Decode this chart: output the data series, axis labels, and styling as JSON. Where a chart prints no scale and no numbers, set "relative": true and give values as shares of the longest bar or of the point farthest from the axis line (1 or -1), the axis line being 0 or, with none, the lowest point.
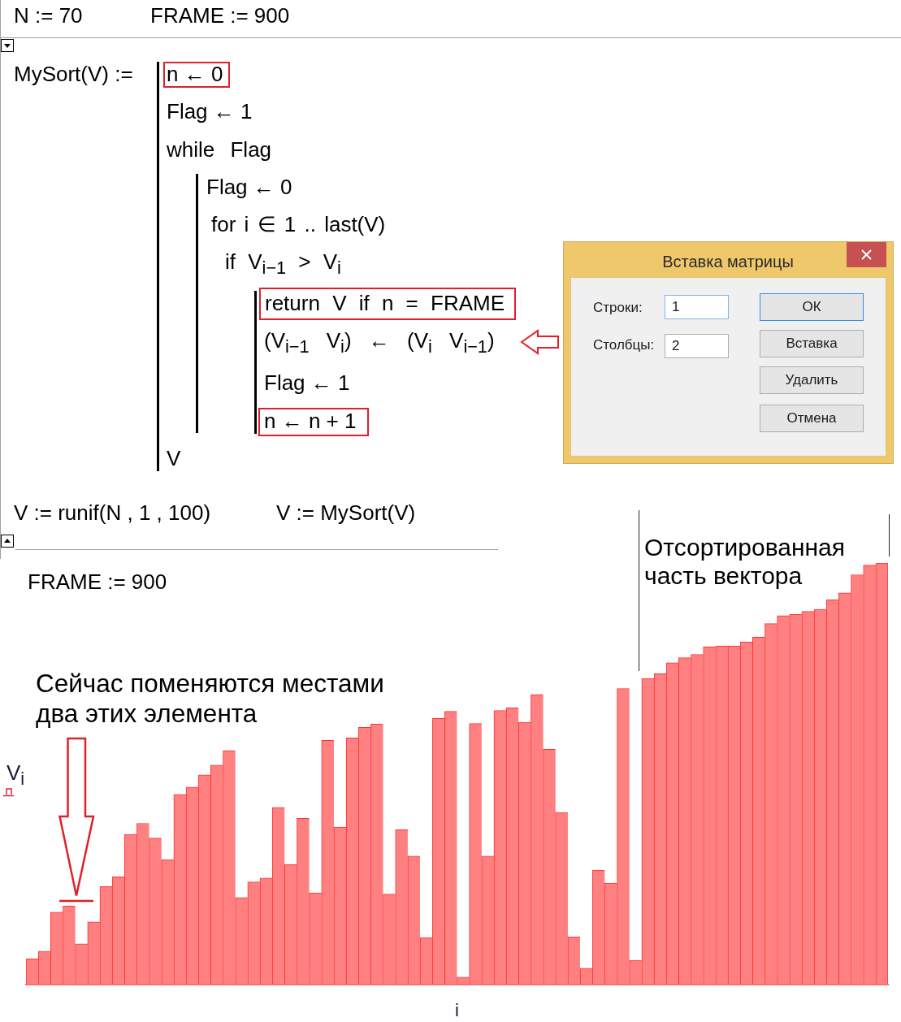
{
  "chart_data": {
    "type": "bar",
    "relative": true,
    "xlabel": "i",
    "ylabel": "V$_{i}$",
    "color": "#ff8080",
    "categories": [
      null,
      null,
      null,
      null,
      null,
      null,
      null,
      null,
      null,
      null,
      null,
      null,
      null,
      null,
      null,
      null,
      null,
      null,
      null,
      null,
      null,
      null,
      null,
      null,
      null,
      null,
      null,
      null,
      null,
      null,
      null,
      null,
      null,
      null,
      null,
      null,
      null,
      null,
      null,
      null,
      null,
      null,
      null,
      null,
      null,
      null,
      null,
      null,
      null,
      null,
      null,
      null,
      null,
      null,
      null,
      null,
      null,
      null,
      null,
      null,
      null,
      null,
      null,
      null,
      null,
      null,
      null,
      null,
      null,
      null
    ],
    "values": [
      0.061,
      0.078,
      0.171,
      0.186,
      0.096,
      0.148,
      0.232,
      0.255,
      0.356,
      0.382,
      0.347,
      0.296,
      0.451,
      0.468,
      0.497,
      0.52,
      0.555,
      0.206,
      0.243,
      0.252,
      0.42,
      0.284,
      0.394,
      0.217,
      0.579,
      0.373,
      0.585,
      0.61,
      0.618,
      0.214,
      0.367,
      0.304,
      0.111,
      0.631,
      0.648,
      0.017,
      0.619,
      0.304,
      0.65,
      0.656,
      0.622,
      0.688,
      0.558,
      0.408,
      0.113,
      0.038,
      0.271,
      0.24,
      0.702,
      0.057,
      0.726,
      0.737,
      0.763,
      0.775,
      0.783,
      0.801,
      0.803,
      0.803,
      0.813,
      0.824,
      0.856,
      0.875,
      0.878,
      0.885,
      0.89,
      0.913,
      0.929,
      0.972,
      0.995,
      1
    ],
    "annotations": [
      "N := 70",
      "FRAME := 900",
      "MySort(V) :=",
      "n ← 0",
      "Flag ← 1",
      "while Flag",
      "Flag ← 0",
      "for i ∈ 1 .. last(V)",
      "if V$_{i−1}$ > V$_{i}$",
      "return V if n = FRAME",
      "(V$_{i−1}$ V$_{i}$) ← (V$_{i}$ V$_{i−1}$)",
      "Flag ← 1",
      "n ← n + 1",
      "V",
      "V := runif(N , 1 , 100)",
      "V := MySort(V)",
      "Вставка матрицы",
      "Строки:",
      "1",
      "Столбцы:",
      "2",
      "ОК",
      "Вставка",
      "Удалить",
      "Отмена",
      "FRAME := 900",
      "Сейчас поменяются местами два этих элемента",
      "Отсортированная часть вектора"
    ]
  }
}
